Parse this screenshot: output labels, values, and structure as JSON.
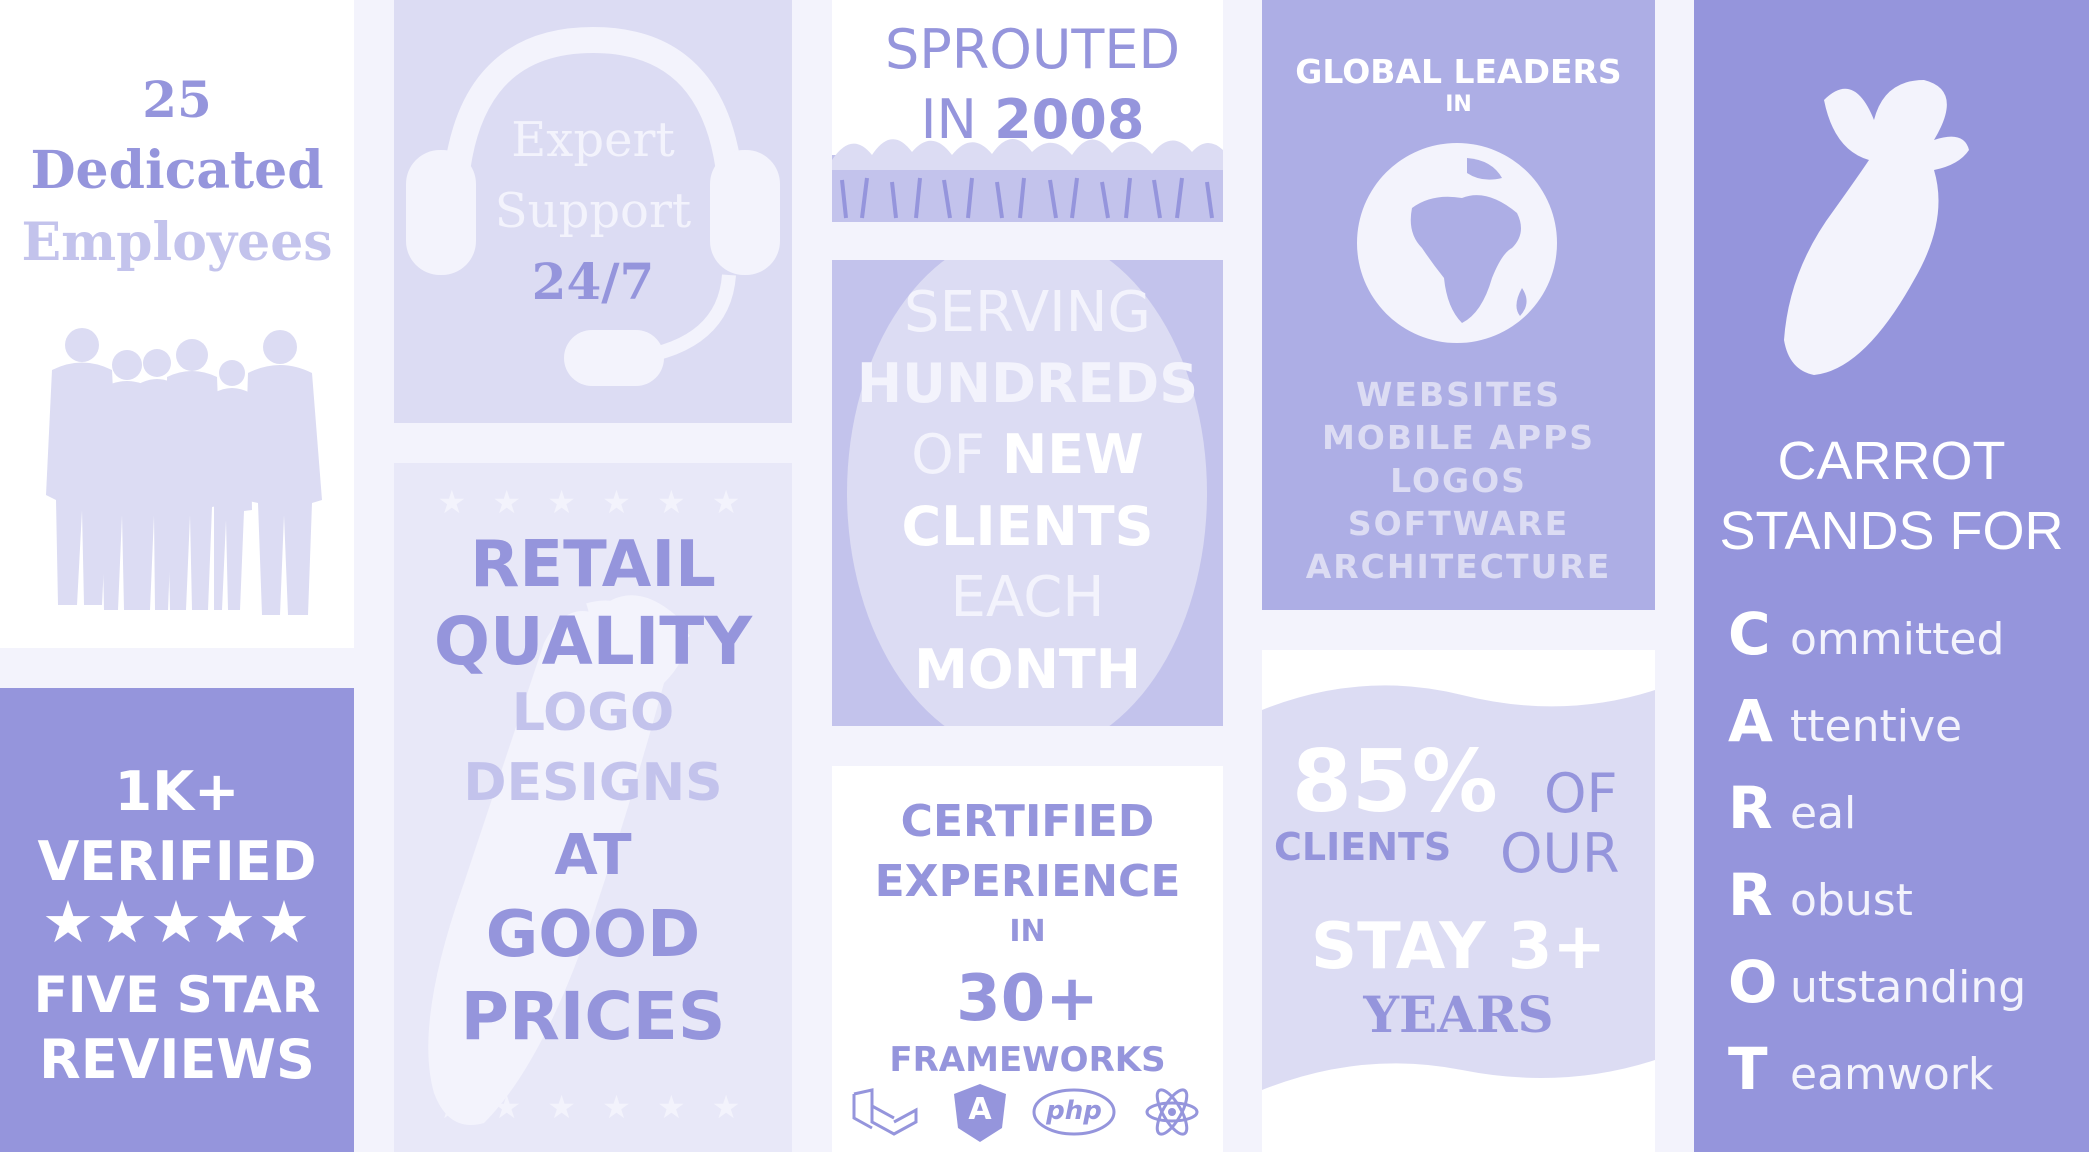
{
  "colors": {
    "page_bg": "#f3f3fc",
    "accent": "#9595dc",
    "light": "#dcdcf3",
    "mid": "#c3c3ec",
    "pale": "#e8e8f8",
    "white": "#ffffff"
  },
  "employees": {
    "line1": "25",
    "line2": "Dedicated",
    "line3": "Employees",
    "icon": "people-silhouette-icon"
  },
  "support": {
    "line1": "Expert",
    "line2": "Support",
    "line3": "24/7",
    "icon": "headset-icon"
  },
  "sprouted": {
    "line1": "SPROUTED",
    "line2_prefix": "IN",
    "line2_year": "2008",
    "icon": "grass-illustration"
  },
  "serving": {
    "l1": "SERVING",
    "l2": "HUNDREDS",
    "l3a": "OF",
    "l3b": "NEW",
    "l4": "CLIENTS",
    "l5": "EACH",
    "l6": "MONTH"
  },
  "global": {
    "l1": "GLOBAL LEADERS",
    "l2": "IN",
    "items": [
      "WEBSITES",
      "MOBILE APPS",
      "LOGOS",
      "SOFTWARE",
      "ARCHITECTURE"
    ],
    "icon": "globe-icon"
  },
  "carrot": {
    "l1": "CARROT",
    "l2": "STANDS FOR",
    "words": [
      {
        "letter": "C",
        "rest": "ommitted"
      },
      {
        "letter": "A",
        "rest": "ttentive"
      },
      {
        "letter": "R",
        "rest": "eal"
      },
      {
        "letter": "R",
        "rest": "obust"
      },
      {
        "letter": "O",
        "rest": "utstanding"
      },
      {
        "letter": "T",
        "rest": "eamwork"
      }
    ],
    "icon": "carrot-icon"
  },
  "reviews": {
    "l1": "1K+",
    "l2": "VERIFIED",
    "stars": "★★★★★",
    "l3": "FIVE STAR",
    "l4": "REVIEWS"
  },
  "retail": {
    "l1": "RETAIL",
    "l2": "QUALITY",
    "l3": "LOGO",
    "l4": "DESIGNS",
    "l5": "AT",
    "l6": "GOOD",
    "l7": "PRICES",
    "stars_top": "★ ★ ★ ★ ★ ★",
    "stars_bottom": "★ ★ ★ ★ ★ ★"
  },
  "certified": {
    "l1": "CERTIFIED",
    "l2": "EXPERIENCE",
    "l3": "IN",
    "l4": "30+",
    "l5": "FRAMEWORKS",
    "php": "php",
    "angular": "A",
    "icons": [
      "laravel-icon",
      "angular-icon",
      "php-icon",
      "react-icon"
    ]
  },
  "stay": {
    "pct": "85%",
    "of": "OF",
    "clients": "CLIENTS",
    "our": "OUR",
    "stay": "STAY 3+",
    "years": "YEARS"
  }
}
